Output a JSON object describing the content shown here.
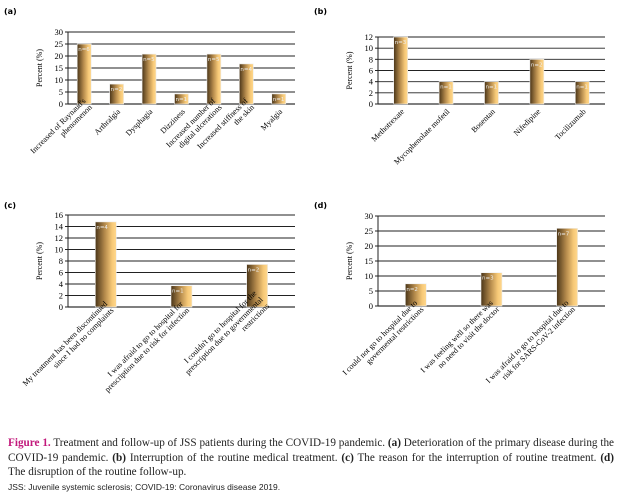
{
  "chart_data": [
    {
      "type": "bar",
      "panel": "(a)",
      "ylabel": "Percent (%)",
      "ylim": [
        0,
        30
      ],
      "yticks": [
        0,
        5,
        10,
        15,
        20,
        25,
        30
      ],
      "categories": [
        [
          "Increased of Raynaud's",
          "phenomenon"
        ],
        [
          "Arthralgia"
        ],
        [
          "Dysphagia"
        ],
        [
          "Dizziness"
        ],
        [
          "Increased number of",
          "digital ulcerations"
        ],
        [
          "Increased stiffness of",
          "the skin"
        ],
        [
          "Myalgia"
        ]
      ],
      "values": [
        25,
        8.3,
        20.8,
        4.2,
        20.8,
        16.7,
        4.2
      ],
      "data_labels": [
        "n=6",
        "n=2",
        "n=5",
        "n=1",
        "n=5",
        "n=4",
        "n=1"
      ]
    },
    {
      "type": "bar",
      "panel": "(b)",
      "ylabel": "Percent (%)",
      "ylim": [
        0,
        12
      ],
      "yticks": [
        0,
        2,
        4,
        6,
        8,
        10,
        12
      ],
      "categories": [
        [
          "Methotrexate"
        ],
        [
          "Mycophenolate mofetil"
        ],
        [
          "Bosentan"
        ],
        [
          "Nifedipine"
        ],
        [
          "Tocilizumab"
        ]
      ],
      "values": [
        12,
        4,
        4,
        8,
        4
      ],
      "data_labels": [
        "n=3",
        "n=1",
        "n=1",
        "n=2",
        "n=1"
      ]
    },
    {
      "type": "bar",
      "panel": "(c)",
      "ylabel": "Percent (%)",
      "ylim": [
        0,
        16
      ],
      "yticks": [
        0,
        2,
        4,
        6,
        8,
        10,
        12,
        14,
        16
      ],
      "categories": [
        [
          "My treatment has been discontinued",
          "since I had no complaints"
        ],
        [
          "I was afraid to go to hospital for",
          "prescription due to risk for infection"
        ],
        [
          "I couldn't go to hospital for the",
          "prescription due to governmental",
          "restrictions"
        ]
      ],
      "values": [
        14.8,
        3.7,
        7.4
      ],
      "data_labels": [
        "n=4",
        "n=1",
        "n=2"
      ]
    },
    {
      "type": "bar",
      "panel": "(d)",
      "ylabel": "Percent (%)",
      "ylim": [
        0,
        30
      ],
      "yticks": [
        0,
        5,
        10,
        15,
        20,
        25,
        30
      ],
      "categories": [
        [
          "I could not go to hospital due to",
          "govermental restrictions"
        ],
        [
          "I was feeling well so there was",
          "no need to visit the doctor"
        ],
        [
          "I was afraid to go to hospital due to",
          "risk for SARS-CoV-2 infection"
        ]
      ],
      "values": [
        7.4,
        11.1,
        25.9
      ],
      "data_labels": [
        "n=2",
        "n=3",
        "n=7"
      ]
    }
  ],
  "caption": {
    "fig": "Figure 1.",
    "t1": " Treatment and follow-up of JSS patients during the COVID-19 pandemic. ",
    "a": "(a)",
    "ta": " Deterioration of the primary disease during the COVID-19 pandemic. ",
    "b": "(b)",
    "tb": " Interruption of the routine medical treatment. ",
    "c": "(c)",
    "tc": " The reason for the interruption of routine treatment. ",
    "d": "(d)",
    "td": " The disruption of the routine follow-up."
  },
  "note": "JSS: Juvenile systemic sclerosis; COVID-19: Coronavirus disease 2019."
}
